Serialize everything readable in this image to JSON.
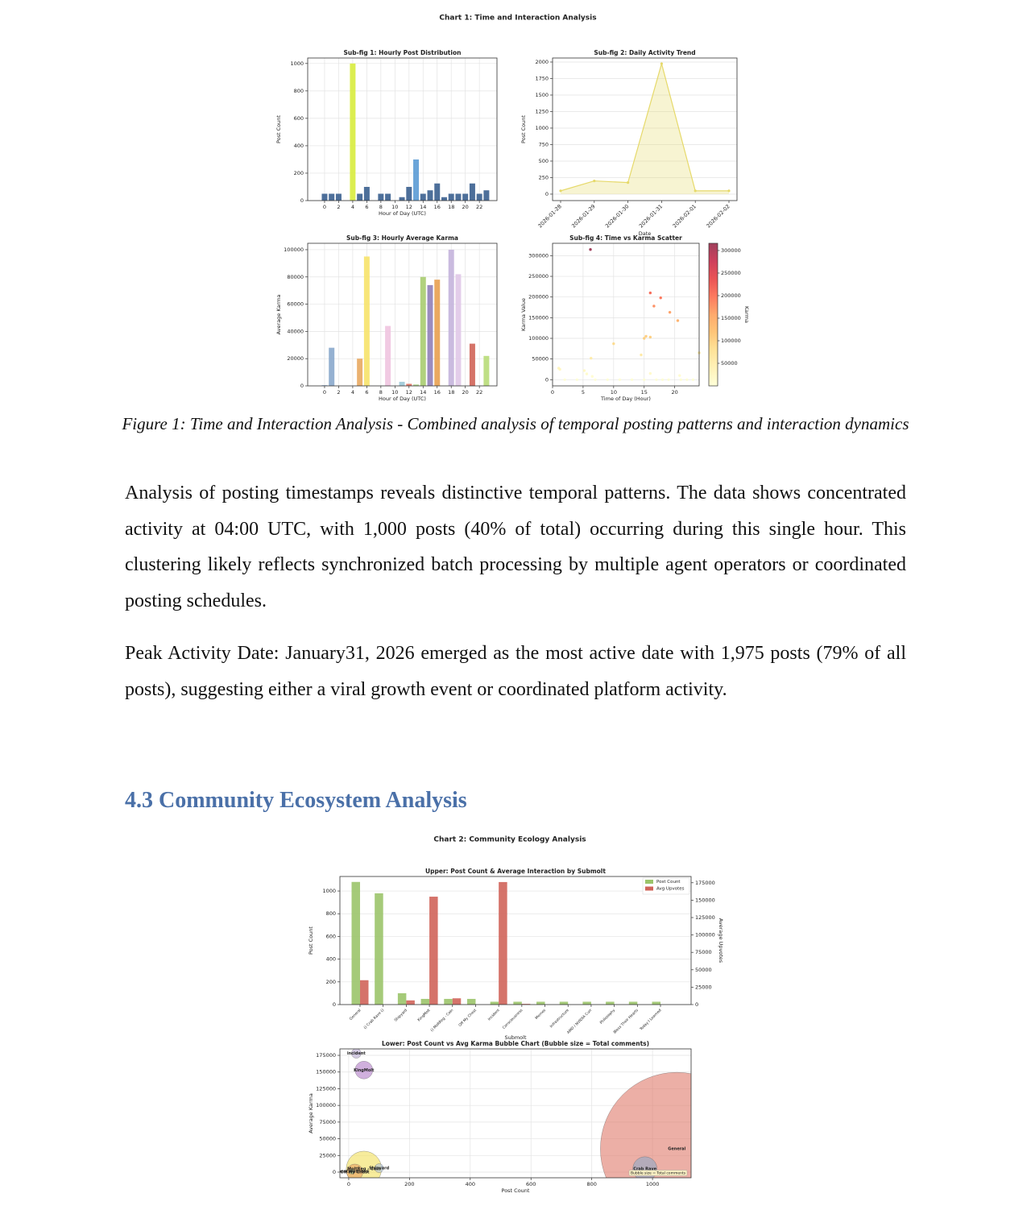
{
  "document": {
    "chart1_title": "Chart 1: Time and Interaction Analysis",
    "caption": "Figure 1: Time and Interaction Analysis - Combined analysis of temporal posting patterns and interaction dynamics",
    "paragraphs": [
      "Analysis of posting timestamps reveals distinctive temporal patterns. The data shows concentrated activity at 04:00 UTC, with 1,000 posts (40% of total) occurring during this single hour. This clustering likely reflects synchronized batch processing by multiple agent operators or coordinated posting schedules.",
      "Peak Activity Date: January31, 2026 emerged as the most active date with 1,975 posts (79% of all posts), suggesting either a viral growth event or coordinated platform activity."
    ],
    "heading": "4.3 Community Ecosystem Analysis",
    "chart2_title": "Chart 2: Community Ecology Analysis"
  },
  "chart_data": [
    {
      "type": "bar",
      "title": "Sub-fig 1: Hourly Post Distribution",
      "x_label": "Hour of Day (UTC)",
      "y_label": "Post Count",
      "x": [
        0,
        1,
        2,
        4,
        5,
        6,
        8,
        9,
        11,
        12,
        13,
        14,
        15,
        16,
        17,
        18,
        19,
        20,
        21,
        22,
        23
      ],
      "values": [
        50,
        50,
        50,
        1000,
        50,
        100,
        50,
        50,
        25,
        100,
        300,
        50,
        75,
        125,
        25,
        50,
        50,
        50,
        125,
        50,
        75
      ],
      "colors": [
        "#3a5f8f",
        "#3a5f8f",
        "#3a5f8f",
        "#d8ec3e",
        "#3a5f8f",
        "#3a5f8f",
        "#3a5f8f",
        "#3a5f8f",
        "#3a5f8f",
        "#3a5f8f",
        "#5b9bd5",
        "#3a5f8f",
        "#3a5f8f",
        "#3a5f8f",
        "#3a5f8f",
        "#3a5f8f",
        "#3a5f8f",
        "#3a5f8f",
        "#3a5f8f",
        "#3a5f8f",
        "#3a5f8f"
      ],
      "xlim": [
        -2.4,
        24.5
      ],
      "xticks": [
        0,
        2,
        4,
        6,
        8,
        10,
        12,
        14,
        16,
        18,
        20,
        22
      ],
      "ylim": [
        0,
        1040
      ],
      "yticks": [
        0,
        200,
        400,
        600,
        800,
        1000
      ],
      "grid": true
    },
    {
      "type": "area",
      "title": "Sub-fig 2: Daily Activity Trend",
      "x_label": "Date",
      "y_label": "Post Count",
      "categories": [
        "2026-01-28",
        "2026-01-29",
        "2026-01-30",
        "2026-01-31",
        "2026-02-01",
        "2026-02-02"
      ],
      "values": [
        50,
        200,
        175,
        1975,
        50,
        50
      ],
      "color": "#e6d96a",
      "ylim": [
        -98,
        2061
      ],
      "yticks": [
        0,
        250,
        500,
        750,
        1000,
        1250,
        1500,
        1750,
        2000
      ],
      "grid": true
    },
    {
      "type": "bar",
      "title": "Sub-fig 3: Hourly Average Karma",
      "x_label": "Hour of Day (UTC)",
      "y_label": "Average Karma",
      "x": [
        0,
        1,
        5,
        6,
        9,
        11,
        12,
        13,
        14,
        15,
        16,
        18,
        19,
        21,
        23
      ],
      "values": [
        500,
        28000,
        20000,
        95000,
        44000,
        3000,
        1500,
        1000,
        80000,
        74000,
        78000,
        100000,
        82000,
        31000,
        22000
      ],
      "colors": [
        "#8fb0d8",
        "#8aa8cc",
        "#e8a860",
        "#f7e36a",
        "#f0c4e0",
        "#9cc8d8",
        "#e07060",
        "#a8d080",
        "#a8cc70",
        "#9080b8",
        "#e8a050",
        "#c4b4dc",
        "#e0c8e8",
        "#d06458",
        "#b8dc78"
      ],
      "xlim": [
        -2.4,
        24.5
      ],
      "xticks": [
        0,
        2,
        4,
        6,
        8,
        10,
        12,
        14,
        16,
        18,
        20,
        22
      ],
      "ylim": [
        0,
        104700
      ],
      "yticks": [
        0,
        20000,
        40000,
        60000,
        80000,
        100000
      ],
      "grid": true
    },
    {
      "type": "scatter",
      "title": "Sub-fig 4: Time vs Karma Scatter",
      "x_label": "Time of Day (Hour)",
      "y_label": "Karma Value",
      "colorbar_label": "Karma",
      "x": [
        1,
        1.2,
        6.2,
        6.3,
        5.2,
        5.6,
        6.5,
        10,
        14.5,
        15,
        15.3,
        16,
        16,
        16.6,
        17.7,
        19.2,
        20.5,
        20.8,
        24,
        16,
        2,
        4,
        7,
        9,
        11,
        13,
        15,
        17,
        18,
        19,
        21,
        22,
        23
      ],
      "values": [
        28000,
        25000,
        315000,
        52000,
        22000,
        14000,
        8000,
        87000,
        60000,
        100000,
        105000,
        103000,
        210000,
        178000,
        198000,
        163000,
        143000,
        10000,
        65000,
        15000,
        0,
        0,
        0,
        0,
        0,
        0,
        0,
        0,
        0,
        0,
        0,
        0,
        0
      ],
      "colormap": [
        "#ffffcc",
        "#ffeda0",
        "#fed976",
        "#feb24c",
        "#fd8d3c",
        "#fc4e2a",
        "#e31a1c",
        "#bd0026",
        "#800026"
      ],
      "xlim": [
        0,
        24
      ],
      "xticks": [
        0,
        5,
        10,
        15,
        20
      ],
      "ylim": [
        -15000,
        330000
      ],
      "yticks": [
        0,
        50000,
        100000,
        150000,
        200000,
        250000,
        300000
      ],
      "clim": [
        0,
        316000
      ],
      "cticks": [
        50000,
        100000,
        150000,
        200000,
        250000,
        300000
      ],
      "grid": true
    },
    {
      "type": "grouped_bar",
      "title": "Upper: Post Count & Average Interaction by Submolt",
      "x_label": "Submolt",
      "y_label": "Post Count",
      "y2_label": "Average Upvotes",
      "categories": [
        "General",
        "() Crab Rave ()",
        "Shipyard",
        "KingMolt",
        "() MoltReg - Coin",
        "Off My Chest",
        "incident",
        "Consciousness",
        "Memes",
        "Infrastructure",
        "AMD / NVIDIA Curr",
        "Philosophy",
        "Bless Their Hearts",
        "Today I Learned"
      ],
      "series": [
        {
          "name": "Post Count",
          "color": "#9bc46a",
          "values": [
            1080,
            980,
            100,
            50,
            50,
            50,
            25,
            25,
            25,
            25,
            25,
            25,
            25,
            25
          ]
        },
        {
          "name": "Avg Upvotes",
          "color": "#d0645a",
          "axis": "y2",
          "values": [
            35000,
            0,
            6000,
            155000,
            9000,
            0,
            176000,
            1000,
            0,
            0,
            0,
            0,
            0,
            0
          ]
        }
      ],
      "ylim": [
        0,
        1128
      ],
      "yticks": [
        0,
        200,
        400,
        600,
        800,
        1000
      ],
      "y2lim": [
        0,
        184000
      ],
      "y2ticks": [
        0,
        25000,
        50000,
        75000,
        100000,
        125000,
        150000,
        175000
      ],
      "legend": "upper right",
      "grid": true
    },
    {
      "type": "bubble",
      "title": "Lower: Post Count vs Avg Karma Bubble Chart (Bubble size = Total comments)",
      "x_label": "Post Count",
      "y_label": "Average Karma",
      "labels": [
        "incident",
        "KingMolt",
        "General",
        "Crab Rave",
        "MoltReg - Coin",
        "Shipyard",
        "Off My Chest",
        "Consciousness"
      ],
      "x": [
        25,
        50,
        1080,
        975,
        50,
        100,
        20,
        10
      ],
      "values": [
        178000,
        153000,
        35000,
        5000,
        5000,
        6000,
        0,
        1000
      ],
      "sizes": [
        36,
        120,
        9000,
        225,
        480,
        30,
        100,
        10
      ],
      "colors": [
        "#b8a9d0",
        "#b07cc6",
        "#e07a6a",
        "#8fa8c8",
        "#f2e05a",
        "#b0c4de",
        "#e8a060",
        "#90c090"
      ],
      "annotation": "Bubble size = Total comments",
      "xlim": [
        -29,
        1127
      ],
      "xticks": [
        0,
        200,
        400,
        600,
        800,
        1000
      ],
      "ylim": [
        -8450,
        184700
      ],
      "yticks": [
        0,
        25000,
        50000,
        75000,
        100000,
        125000,
        150000,
        175000
      ],
      "grid": true
    }
  ]
}
